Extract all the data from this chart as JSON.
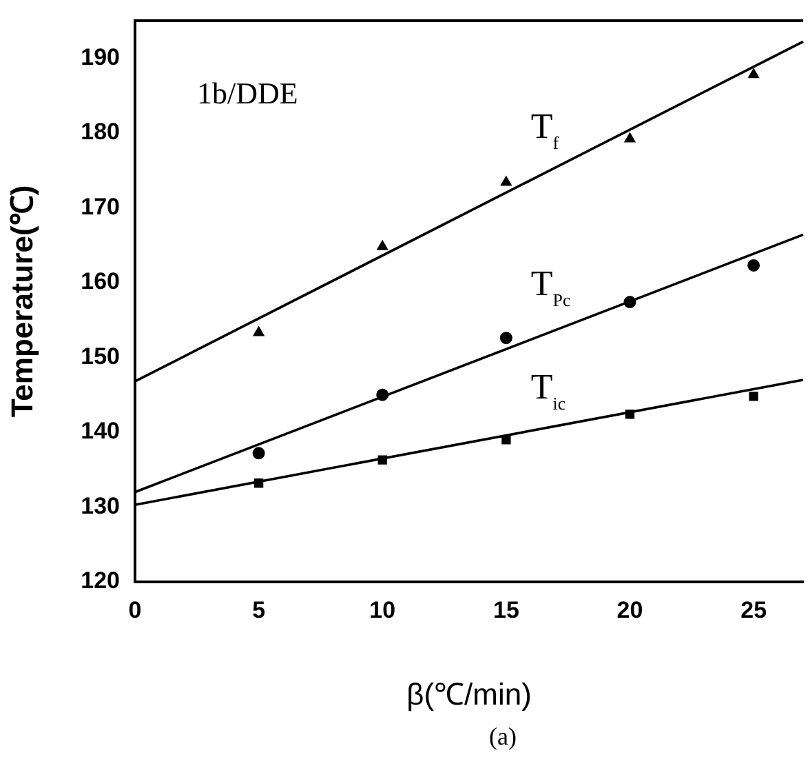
{
  "chart_data": {
    "type": "scatter",
    "xlabel": "β(℃/min)",
    "ylabel": "Temperature(℃)",
    "annotations": [
      "1b/DDE",
      "(a)"
    ],
    "xlim": [
      0,
      27
    ],
    "ylim": [
      120,
      195
    ],
    "xticks": [
      0,
      5,
      10,
      15,
      20,
      25
    ],
    "yticks": [
      120,
      130,
      140,
      150,
      160,
      170,
      180,
      190
    ],
    "grid": false,
    "legend": false,
    "series": [
      {
        "name": "T$_{f}$",
        "marker": "triangle",
        "color": "#000000",
        "x": [
          5,
          10,
          15,
          20,
          25
        ],
        "values": [
          153.3,
          164.8,
          173.4,
          179.2,
          187.8
        ]
      },
      {
        "name": "T$_{Pc}$",
        "marker": "circle",
        "color": "#000000",
        "x": [
          5,
          10,
          15,
          20,
          25
        ],
        "values": [
          137.2,
          145,
          152.6,
          157.4,
          162.3
        ]
      },
      {
        "name": "T$_{ic}$",
        "marker": "square",
        "color": "#000000",
        "x": [
          5,
          10,
          15,
          20,
          25
        ],
        "values": [
          133.2,
          136.3,
          139,
          142.4,
          144.8
        ]
      },
      {
        "type": "line",
        "marker": "none",
        "line_style": "solid",
        "color": "#000000",
        "x": [
          0,
          27
        ],
        "values": [
          146.8,
          192.2
        ]
      },
      {
        "type": "line",
        "marker": "none",
        "line_style": "solid",
        "color": "#000000",
        "x": [
          0,
          27
        ],
        "values": [
          132,
          166.4
        ]
      },
      {
        "type": "line",
        "marker": "none",
        "line_style": "solid",
        "color": "#000000",
        "x": [
          0,
          27
        ],
        "values": [
          130.3,
          147
        ]
      }
    ]
  }
}
